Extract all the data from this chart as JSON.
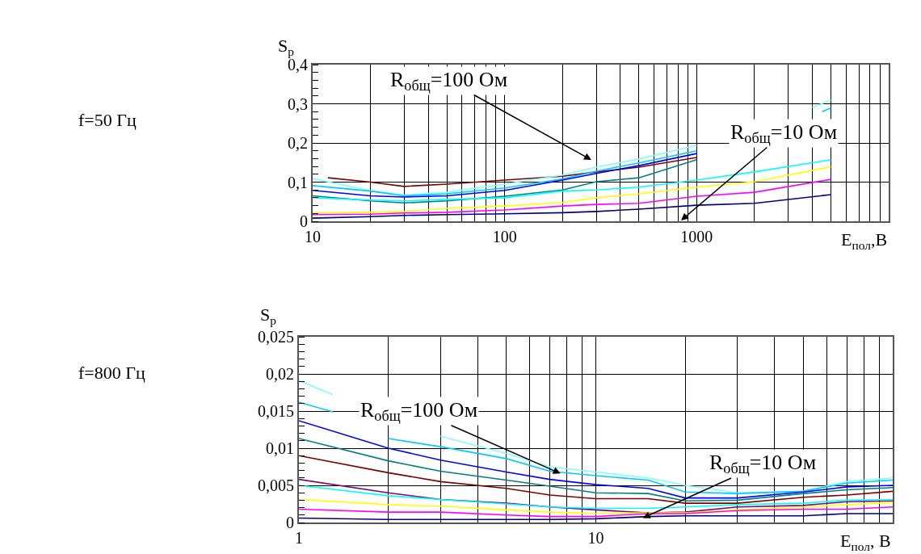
{
  "chart_data": [
    {
      "type": "line",
      "ylabel": "S$_{p}$",
      "xlabel": "E$_{пол}$,В",
      "log": "x",
      "grid": true,
      "xlim": [
        10,
        10000
      ],
      "xticks": [
        10,
        100,
        1000
      ],
      "ylim": [
        0,
        0.4
      ],
      "yticks": [
        0,
        {
          "value": 0.1,
          "label": "0,1"
        },
        {
          "value": 0.2,
          "label": "0,2"
        },
        {
          "value": 0.3,
          "label": "0,3"
        },
        {
          "value": 0.4,
          "label": "0,4"
        }
      ],
      "annotations": [
        "f=50 Гц",
        "R$_{общ}$=100 Ом",
        "R$_{общ}$=10 Ом"
      ],
      "series": [
        {
          "color": "#800000",
          "x": [
            12,
            20,
            30,
            50,
            100,
            200,
            300,
            500,
            1000
          ],
          "values": [
            0.111,
            0.1,
            0.089,
            0.095,
            0.105,
            0.115,
            0.126,
            0.138,
            0.163
          ]
        },
        {
          "color": "#80ffff",
          "x": [
            10,
            20,
            30,
            50,
            100,
            200,
            300,
            500,
            1000,
            2000,
            4000,
            5000
          ],
          "values": [
            0.109,
            0.078,
            0.067,
            0.074,
            0.095,
            0.118,
            0.138,
            0.159,
            0.194,
            null,
            0.29,
            0.31
          ]
        },
        {
          "color": "#00ccff",
          "x": [
            10,
            20,
            30,
            50,
            100,
            200,
            300,
            500,
            1000,
            2000,
            4500,
            5000
          ],
          "values": [
            0.091,
            0.077,
            0.065,
            0.07,
            0.085,
            0.108,
            0.128,
            0.149,
            0.18,
            null,
            0.28,
            0.289
          ]
        },
        {
          "color": "#0000ff",
          "x": [
            10,
            20,
            30,
            50,
            100,
            200,
            300,
            500,
            1000
          ],
          "values": [
            0.079,
            0.065,
            0.062,
            0.065,
            0.079,
            0.105,
            0.122,
            0.142,
            0.173
          ]
        },
        {
          "color": "#008080",
          "x": [
            10,
            20,
            30,
            50,
            100,
            200,
            300,
            500,
            1000
          ],
          "values": [
            0.065,
            0.052,
            0.047,
            0.052,
            0.064,
            0.08,
            0.101,
            0.111,
            0.157
          ]
        },
        {
          "color": "#00ffff",
          "x": [
            10,
            20,
            30,
            50,
            100,
            200,
            300,
            500,
            1000,
            2000,
            5000
          ],
          "values": [
            0.06,
            0.054,
            0.052,
            0.056,
            0.06,
            0.077,
            0.08,
            0.087,
            0.105,
            0.126,
            0.157
          ]
        },
        {
          "color": "#ffff00",
          "x": [
            10,
            20,
            30,
            50,
            100,
            200,
            300,
            500,
            1000,
            2000,
            5000
          ],
          "values": [
            0.021,
            0.023,
            0.025,
            0.033,
            0.039,
            0.048,
            0.06,
            0.07,
            0.087,
            0.101,
            0.139
          ]
        },
        {
          "color": "#ff00ff",
          "x": [
            10,
            20,
            30,
            50,
            100,
            200,
            300,
            500,
            1000,
            2000,
            5000
          ],
          "values": [
            0.017,
            0.018,
            0.021,
            0.023,
            0.029,
            0.039,
            0.043,
            0.046,
            0.064,
            0.074,
            0.107
          ]
        },
        {
          "color": "#000080",
          "x": [
            10,
            20,
            30,
            50,
            100,
            200,
            300,
            500,
            1000,
            2000,
            5000
          ],
          "values": [
            0.008,
            0.012,
            0.015,
            0.017,
            0.019,
            0.022,
            0.025,
            0.031,
            0.041,
            0.046,
            0.068
          ]
        }
      ]
    },
    {
      "type": "line",
      "ylabel": "S$_{p}$",
      "xlabel": "E$_{пол}$, В",
      "log": "x",
      "grid": true,
      "xlim": [
        1,
        100
      ],
      "xticks": [
        1,
        10
      ],
      "ylim": [
        0,
        0.025
      ],
      "yticks": [
        0,
        {
          "value": 0.005,
          "label": "0,005"
        },
        {
          "value": 0.01,
          "label": "0,01"
        },
        {
          "value": 0.015,
          "label": "0,015"
        },
        {
          "value": 0.02,
          "label": "0,02"
        },
        {
          "value": 0.025,
          "label": "0,025"
        }
      ],
      "annotations": [
        "f=800 Гц",
        {
          "text": "R$_{общ}$=100 Ом",
          "x": 7.6,
          "y": 0.0066
        },
        {
          "text": "R$_{общ}$=10 Ом",
          "x": 14.4,
          "y": 0.0006
        }
      ],
      "series": [
        {
          "color": "#80ffff",
          "x": [
            1,
            1.3,
            2,
            3,
            5,
            7,
            10,
            15,
            20,
            30,
            50,
            70,
            100
          ],
          "values": [
            0.0191,
            0.0172,
            null,
            0.0116,
            0.0093,
            0.0075,
            0.0068,
            0.006,
            0.005,
            0.004,
            0.0042,
            0.0055,
            0.006
          ]
        },
        {
          "color": "#00ccff",
          "x": [
            1,
            1.3,
            1.6,
            2,
            3,
            5,
            7,
            10,
            15,
            20,
            30,
            50,
            70,
            100
          ],
          "values": [
            0.0162,
            0.0149,
            null,
            0.0113,
            0.0102,
            0.0086,
            0.0069,
            0.0063,
            0.0057,
            0.0041,
            0.0039,
            0.0042,
            0.0053,
            0.0057
          ]
        },
        {
          "color": "#0000ff",
          "x": [
            1,
            2,
            3,
            5,
            7,
            10,
            15,
            20,
            30,
            50,
            70,
            100
          ],
          "values": [
            0.0137,
            0.01,
            0.0084,
            0.0068,
            0.0058,
            0.0051,
            0.0046,
            0.0033,
            0.0033,
            0.0041,
            0.0048,
            0.005
          ]
        },
        {
          "color": "#008080",
          "x": [
            1,
            2,
            3,
            5,
            7,
            10,
            15,
            20,
            30,
            50,
            70,
            100
          ],
          "values": [
            0.0113,
            0.0083,
            0.0069,
            0.0057,
            0.0049,
            0.004,
            0.0039,
            0.0029,
            0.003,
            0.0039,
            0.0044,
            0.0047
          ]
        },
        {
          "color": "#800000",
          "x": [
            1,
            2,
            3,
            5,
            7,
            10,
            15,
            20,
            30,
            50,
            70,
            100
          ],
          "values": [
            0.009,
            0.0067,
            0.0055,
            0.0046,
            0.0037,
            0.0032,
            0.0032,
            0.0026,
            0.0026,
            0.0034,
            0.0037,
            0.0042
          ]
        },
        {
          "color": "#800080",
          "x": [
            1,
            2,
            3,
            5,
            7,
            10,
            15,
            20,
            30,
            50,
            70,
            100
          ],
          "values": [
            0.0058,
            0.004,
            0.0031,
            0.0026,
            0.0021,
            0.0017,
            0.0013,
            0.0014,
            0.0021,
            0.0023,
            0.0028,
            0.0029
          ]
        },
        {
          "color": "#00ffff",
          "x": [
            1,
            2,
            3,
            5,
            7,
            10,
            15,
            20,
            30,
            50,
            70,
            100
          ],
          "values": [
            0.005,
            0.0036,
            0.0031,
            0.0025,
            0.0021,
            0.0019,
            0.0019,
            0.0021,
            0.0024,
            0.0026,
            0.003,
            0.0031
          ]
        },
        {
          "color": "#ffff00",
          "x": [
            1,
            2,
            3,
            5,
            7,
            10,
            15,
            20,
            30,
            50,
            70,
            100
          ],
          "values": [
            0.0031,
            0.0024,
            0.0022,
            0.0017,
            0.0014,
            0.0012,
            0.0013,
            0.0013,
            0.0017,
            0.0021,
            0.0024,
            0.0027
          ]
        },
        {
          "color": "#ff00ff",
          "x": [
            1,
            2,
            3,
            5,
            7,
            10,
            15,
            20,
            30,
            50,
            70,
            100
          ],
          "values": [
            0.0018,
            0.0014,
            0.0014,
            0.001,
            0.0008,
            0.0008,
            0.0012,
            0.0012,
            0.0016,
            0.0018,
            0.0018,
            0.0021
          ]
        },
        {
          "color": "#000080",
          "x": [
            1,
            2,
            3,
            5,
            7,
            10,
            15,
            20,
            30,
            50,
            70,
            100
          ],
          "values": [
            0.0006,
            0.0004,
            0.0004,
            0.0004,
            0.0004,
            0.0005,
            0.0008,
            0.0009,
            0.0009,
            0.0009,
            0.0012,
            0.0012
          ]
        }
      ]
    }
  ]
}
